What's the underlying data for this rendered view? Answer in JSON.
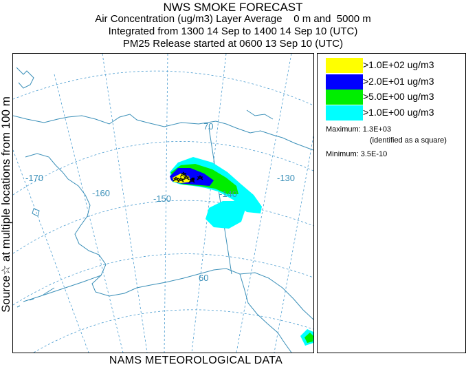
{
  "header": {
    "title": "NWS SMOKE FORECAST",
    "line1": "Air Concentration (ug/m3) Layer Average    0 m and  5000 m",
    "line2": "Integrated from 1300 14 Sep to 1400 14 Sep 10 (UTC)",
    "line3": "PM25 Release started at 0600 13 Sep 10 (UTC)"
  },
  "side_label": "Source☆  at multiple locations     from  100 m",
  "footer": "NAMS METEOROLOGICAL DATA",
  "map": {
    "lon_labels": [
      "-170",
      "-160",
      "-150",
      "-140",
      "-130"
    ],
    "lat_labels": [
      "70",
      "60"
    ],
    "colors": {
      "graticule": "#4a9cd0",
      "coast": "#3a8fb8",
      "label": "#3a8fb8"
    }
  },
  "legend": {
    "items": [
      {
        "label": ">1.0E+02 ug/m3",
        "color": "#ffff00"
      },
      {
        "label": ">2.0E+01 ug/m3",
        "color": "#0000ff"
      },
      {
        "label": ">5.0E+00 ug/m3",
        "color": "#00ee00"
      },
      {
        "label": ">1.0E+00 ug/m3",
        "color": "#00ffff"
      }
    ],
    "maximum_label": "Maximum: 1.3E+03",
    "maximum_note": "(identified as a square)",
    "minimum_label": "Minimum: 3.5E-10"
  }
}
